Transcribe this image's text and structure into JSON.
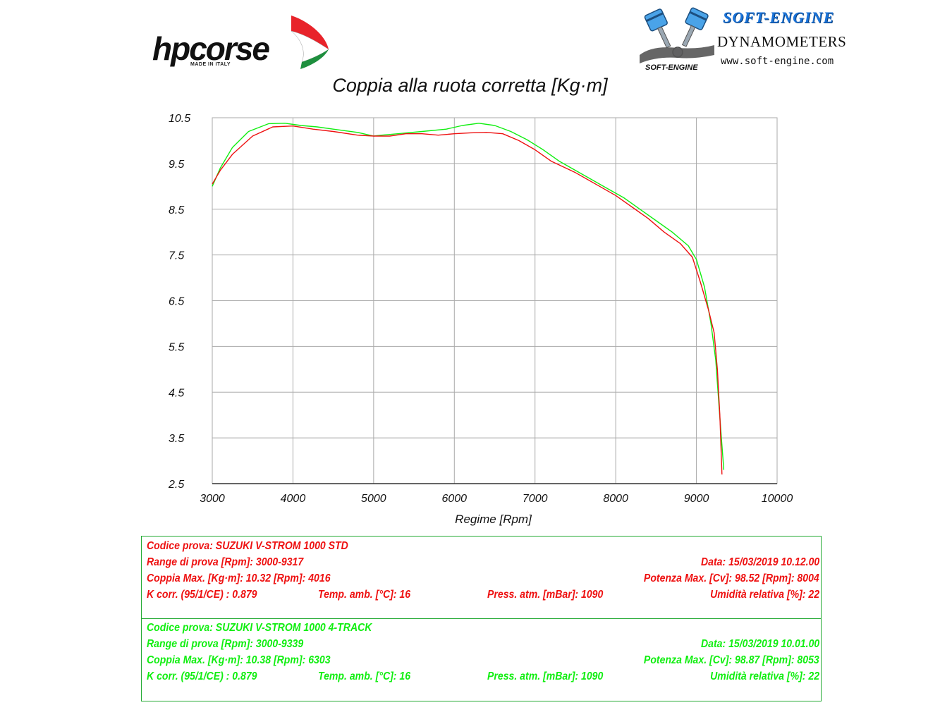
{
  "header": {
    "brand_left": "hpcorse",
    "brand_left_sub": "MADE IN ITALY",
    "brand_right_title": "SOFT-ENGINE",
    "brand_right_sub": "DYNAMOMETERS",
    "brand_right_web": "www.soft-engine.com",
    "brand_right_mark_text": "SOFT-ENGINE"
  },
  "colors": {
    "series_std": "#ee1111",
    "series_4track": "#11ee11",
    "grid": "#aaaaaa",
    "box_border": "#22aa33"
  },
  "chart_data": {
    "type": "line",
    "title": "Coppia alla ruota corretta [Kg·m]",
    "xlabel": "Regime [Rpm]",
    "ylabel": "",
    "xlim": [
      3000,
      10000
    ],
    "ylim": [
      2.5,
      10.5
    ],
    "x_ticks": [
      3000,
      4000,
      5000,
      6000,
      7000,
      8000,
      9000,
      10000
    ],
    "y_ticks": [
      2.5,
      3.5,
      4.5,
      5.5,
      6.5,
      7.5,
      8.5,
      9.5,
      10.5
    ],
    "y_tick_labels": [
      "2.5",
      "3.5",
      "4.5",
      "5.5",
      "6.5",
      "7.5",
      "8.5",
      "9.5",
      "10.5"
    ],
    "grid": true,
    "legend": "none",
    "series": [
      {
        "color": "#ee1111",
        "x": [
          3000,
          3100,
          3250,
          3500,
          3750,
          4000,
          4250,
          4500,
          4800,
          5000,
          5200,
          5400,
          5600,
          5800,
          6000,
          6200,
          6400,
          6600,
          6800,
          7000,
          7200,
          7500,
          7800,
          8000,
          8200,
          8400,
          8600,
          8800,
          8950,
          9050,
          9150,
          9220,
          9260,
          9290,
          9317
        ],
        "y": [
          9.05,
          9.35,
          9.7,
          10.1,
          10.3,
          10.32,
          10.25,
          10.2,
          10.12,
          10.1,
          10.1,
          10.15,
          10.15,
          10.12,
          10.15,
          10.17,
          10.18,
          10.15,
          10.0,
          9.8,
          9.55,
          9.3,
          9.0,
          8.8,
          8.55,
          8.3,
          8.0,
          7.75,
          7.45,
          6.9,
          6.3,
          5.8,
          5.0,
          4.0,
          2.7
        ]
      },
      {
        "color": "#11ee11",
        "x": [
          3000,
          3100,
          3250,
          3450,
          3700,
          3900,
          4100,
          4300,
          4500,
          4800,
          5000,
          5100,
          5300,
          5600,
          5900,
          6100,
          6303,
          6500,
          6700,
          6900,
          7100,
          7300,
          7600,
          7900,
          8100,
          8300,
          8500,
          8700,
          8900,
          9000,
          9100,
          9180,
          9240,
          9280,
          9339
        ],
        "y": [
          9.0,
          9.4,
          9.85,
          10.2,
          10.37,
          10.38,
          10.33,
          10.3,
          10.25,
          10.18,
          10.1,
          10.12,
          10.15,
          10.2,
          10.25,
          10.33,
          10.38,
          10.33,
          10.2,
          10.02,
          9.8,
          9.55,
          9.25,
          8.95,
          8.75,
          8.5,
          8.25,
          8.0,
          7.7,
          7.4,
          6.8,
          6.0,
          5.2,
          4.2,
          2.8
        ]
      }
    ]
  },
  "tests": [
    {
      "code": "Codice prova: SUZUKI V-STROM 1000 STD",
      "range": "Range di prova [Rpm]: 3000-9317",
      "date": "Data: 15/03/2019   10.12.00",
      "torque": "Coppia Max. [Kg·m]: 10.32   [Rpm]: 4016",
      "power": "Potenza Max. [Cv]: 98.52   [Rpm]: 8004",
      "kcorr": "K corr. (95/1/CE) : 0.879",
      "temp": "Temp. amb. [°C]: 16",
      "press": "Press. atm. [mBar]: 1090",
      "humidity": "Umidità relativa [%]: 22"
    },
    {
      "code": "Codice prova: SUZUKI V-STROM 1000  4-TRACK",
      "range": "Range di prova [Rpm]: 3000-9339",
      "date": "Data: 15/03/2019   10.01.00",
      "torque": "Coppia Max. [Kg·m]: 10.38   [Rpm]: 6303",
      "power": "Potenza Max. [Cv]: 98.87   [Rpm]: 8053",
      "kcorr": "K corr. (95/1/CE) : 0.879",
      "temp": "Temp. amb. [°C]: 16",
      "press": "Press. atm. [mBar]: 1090",
      "humidity": "Umidità relativa [%]: 22"
    }
  ]
}
